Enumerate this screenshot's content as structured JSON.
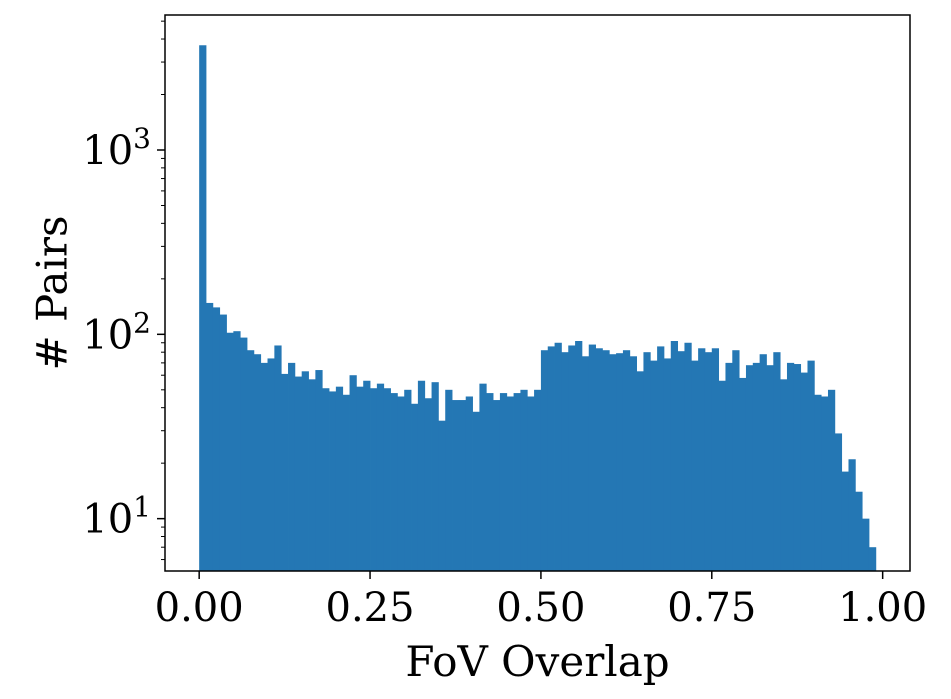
{
  "chart_data": {
    "type": "bar",
    "title": "",
    "xlabel": "FoV Overlap",
    "ylabel": "# Pairs",
    "xlim": [
      -0.05,
      1.04
    ],
    "ylim": [
      5.2,
      5400
    ],
    "yscale": "log",
    "grid": false,
    "bar_color": "#2477b4",
    "x_ticks": [
      {
        "value": 0.0,
        "label": "0.00"
      },
      {
        "value": 0.25,
        "label": "0.25"
      },
      {
        "value": 0.5,
        "label": "0.50"
      },
      {
        "value": 0.75,
        "label": "0.75"
      },
      {
        "value": 1.0,
        "label": "1.00"
      }
    ],
    "y_ticks": [
      {
        "value": 10,
        "base": "10",
        "exp": "1"
      },
      {
        "value": 100,
        "base": "10",
        "exp": "2"
      },
      {
        "value": 1000,
        "base": "10",
        "exp": "3"
      }
    ],
    "bin_width": 0.01,
    "bin_starts": [
      0.0,
      0.01,
      0.02,
      0.03,
      0.04,
      0.05,
      0.06,
      0.07,
      0.08,
      0.09,
      0.1,
      0.11,
      0.12,
      0.13,
      0.14,
      0.15,
      0.16,
      0.17,
      0.18,
      0.19,
      0.2,
      0.21,
      0.22,
      0.23,
      0.24,
      0.25,
      0.26,
      0.27,
      0.28,
      0.29,
      0.3,
      0.31,
      0.32,
      0.33,
      0.34,
      0.35,
      0.36,
      0.37,
      0.38,
      0.39,
      0.4,
      0.41,
      0.42,
      0.43,
      0.44,
      0.45,
      0.46,
      0.47,
      0.48,
      0.49,
      0.5,
      0.51,
      0.52,
      0.53,
      0.54,
      0.55,
      0.56,
      0.57,
      0.58,
      0.59,
      0.6,
      0.61,
      0.62,
      0.63,
      0.64,
      0.65,
      0.66,
      0.67,
      0.68,
      0.69,
      0.7,
      0.71,
      0.72,
      0.73,
      0.74,
      0.75,
      0.76,
      0.77,
      0.78,
      0.79,
      0.8,
      0.81,
      0.82,
      0.83,
      0.84,
      0.85,
      0.86,
      0.87,
      0.88,
      0.89,
      0.9,
      0.91,
      0.92,
      0.93,
      0.94,
      0.95,
      0.96,
      0.97,
      0.98
    ],
    "values": [
      3700,
      148,
      140,
      128,
      102,
      104,
      96,
      82,
      78,
      70,
      74,
      87,
      61,
      70,
      59,
      63,
      57,
      64,
      51,
      49,
      52,
      47,
      60,
      52,
      56,
      51,
      54,
      51,
      48,
      46,
      50,
      42,
      56,
      45,
      55,
      34,
      50,
      44,
      44,
      46,
      38,
      54,
      48,
      44,
      48,
      46,
      48,
      50,
      46,
      50,
      82,
      86,
      90,
      80,
      87,
      92,
      76,
      88,
      84,
      82,
      78,
      79,
      82,
      76,
      63,
      80,
      72,
      86,
      74,
      92,
      81,
      90,
      72,
      84,
      80,
      84,
      56,
      70,
      82,
      58,
      68,
      70,
      78,
      68,
      80,
      57,
      70,
      69,
      62,
      72,
      47,
      46,
      50,
      29,
      18,
      21,
      14,
      10,
      7
    ]
  }
}
